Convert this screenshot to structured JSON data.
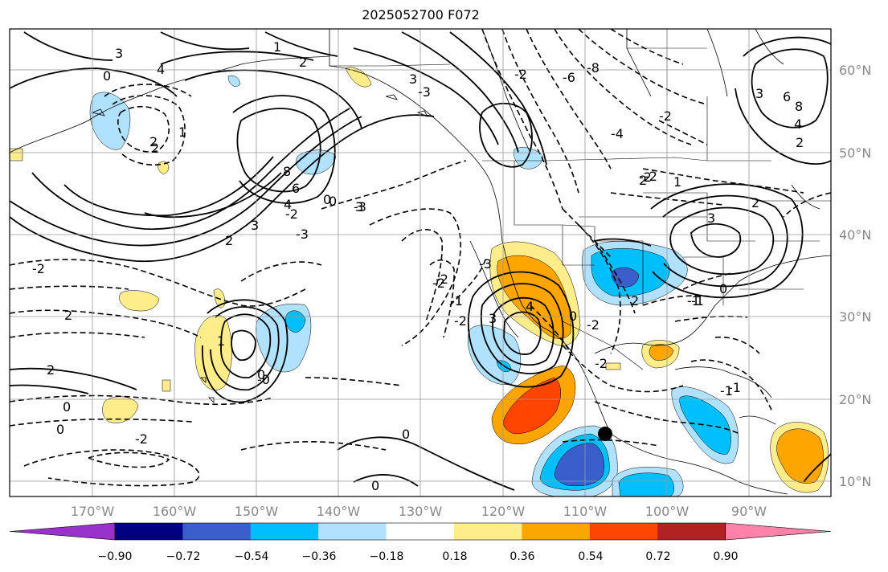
{
  "title": "2025052700 F072",
  "map": {
    "region": "North Pacific / North America",
    "lat_labels": [
      "60°N",
      "50°N",
      "40°N",
      "30°N",
      "20°N",
      "10°N"
    ],
    "lon_labels": [
      "170°W",
      "160°W",
      "150°W",
      "140°W",
      "130°W",
      "120°W",
      "110°W",
      "100°W",
      "90°W"
    ],
    "contour_labels": [
      "3",
      "4",
      "0",
      "2",
      "1",
      "2",
      "3",
      "6",
      "8",
      "6",
      "4",
      "3",
      "2",
      "0",
      "3",
      "0",
      "2",
      "1",
      "3",
      "4",
      "0",
      "2",
      "3",
      "2",
      "1",
      "3",
      "2",
      "0",
      "8",
      "4",
      "2",
      "0",
      "2",
      "1",
      "2",
      "-2",
      "-2",
      "-2",
      "-2",
      "0",
      "0",
      "-3",
      "-2",
      "-3",
      "-3",
      "-3",
      "-2",
      "-1",
      "-1",
      "-1",
      "0",
      "0",
      "-2",
      "-0",
      "-2",
      "-1",
      "-2",
      "-8",
      "-6",
      "-4",
      "-2",
      "-2",
      "-1",
      "-2"
    ],
    "marker": "black-dot"
  },
  "colorbar": {
    "tick_labels": [
      "−0.90",
      "−0.72",
      "−0.54",
      "−0.36",
      "−0.18",
      "0.18",
      "0.36",
      "0.54",
      "0.72",
      "0.90"
    ],
    "colors": [
      "#9932cc",
      "#000080",
      "#3a5fcd",
      "#00bfff",
      "#b0e2ff",
      "#ffffff",
      "#ffec8b",
      "#ffa500",
      "#ff4500",
      "#b22222",
      "#ff82ab"
    ]
  }
}
